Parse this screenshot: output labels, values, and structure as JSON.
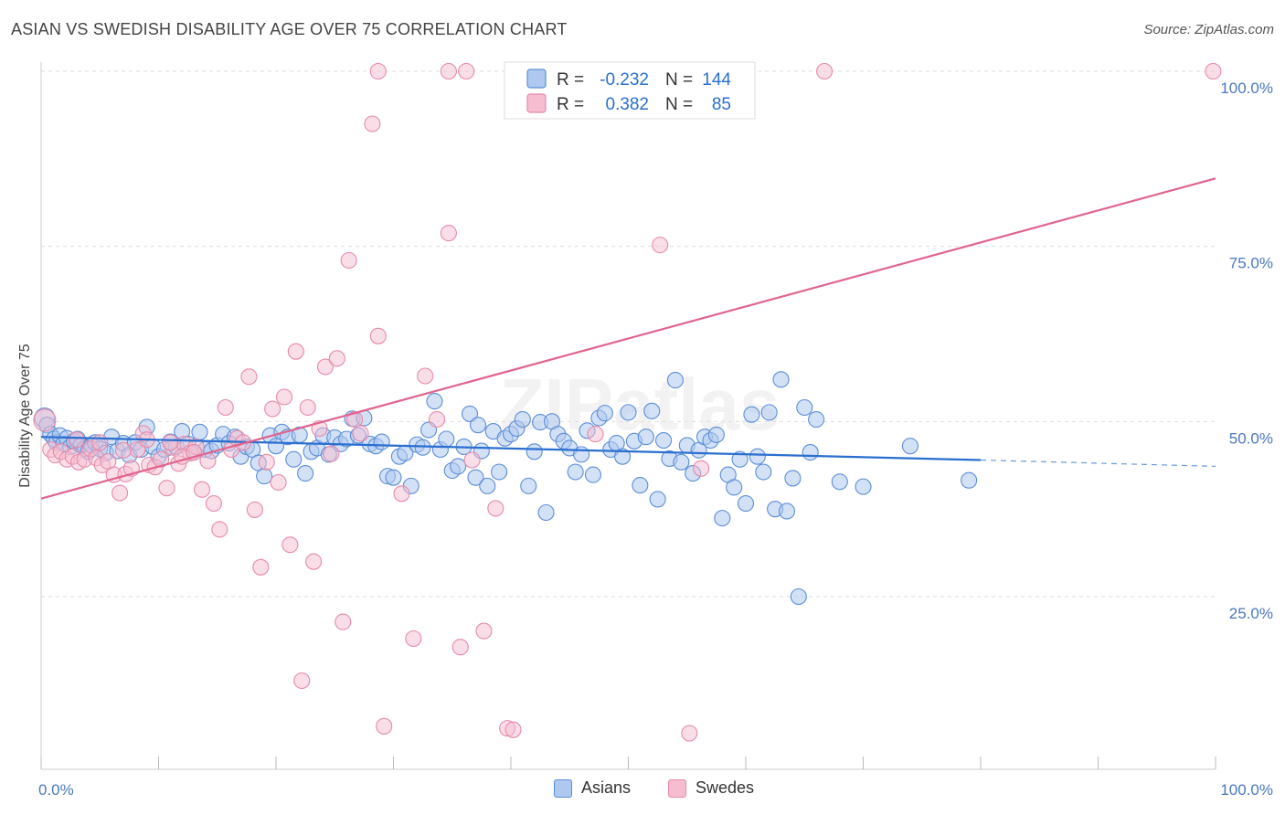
{
  "header": {
    "title": "ASIAN VS SWEDISH DISABILITY AGE OVER 75 CORRELATION CHART",
    "source": "Source: ZipAtlas.com"
  },
  "watermark": "ZIPatlas",
  "colors": {
    "asians_fill": "#aec8ef",
    "asians_stroke": "#5b8ed8",
    "asians_line": "#2a6fd0",
    "swedes_fill": "#f6bdd0",
    "swedes_stroke": "#e58aaa",
    "swedes_line": "#e0648e",
    "tick_text": "#4a78c0"
  },
  "legend": {
    "rows": [
      {
        "r_label": "R =",
        "r_value": "-0.232",
        "n_label": "N =",
        "n_value": "144"
      },
      {
        "r_label": "R =",
        "r_value": "0.382",
        "n_label": "N =",
        "n_value": "85"
      }
    ]
  },
  "bottom_legend": {
    "asians": "Asians",
    "swedes": "Swedes"
  },
  "chart_data": {
    "type": "scatter",
    "title": "ASIAN VS SWEDISH DISABILITY AGE OVER 75 CORRELATION CHART",
    "ylabel": "Disability Age Over 75",
    "xlabel": "",
    "x_tick_labels": [
      "0.0%",
      "100.0%"
    ],
    "y_tick_labels": [
      "100.0%",
      "75.0%",
      "50.0%",
      "25.0%"
    ],
    "y_ticks": [
      100,
      75,
      50,
      25
    ],
    "xlim": [
      0,
      100
    ],
    "ylim": [
      0,
      102
    ],
    "grid": "horizontal dashed",
    "legend_position": "top-center",
    "series": [
      {
        "name": "Asians",
        "r": -0.232,
        "n": 144,
        "trend": {
          "x0": 0,
          "y0": 47.8,
          "x1": 80,
          "y1": 44.5,
          "dashed_to_x": 100,
          "dashed_to_y": 43.6
        },
        "points": [
          [
            0.3,
            50.5
          ],
          [
            0.5,
            49.5
          ],
          [
            0.8,
            48.2
          ],
          [
            1.1,
            47.5
          ],
          [
            1.3,
            47.0
          ],
          [
            1.6,
            48.0
          ],
          [
            1.9,
            46.8
          ],
          [
            2.2,
            47.6
          ],
          [
            2.5,
            46.4
          ],
          [
            2.8,
            47.2
          ],
          [
            3.1,
            47.5
          ],
          [
            3.4,
            46.6
          ],
          [
            3.7,
            46.1
          ],
          [
            4.0,
            45.7
          ],
          [
            4.3,
            46.6
          ],
          [
            4.6,
            47.0
          ],
          [
            5.0,
            46.1
          ],
          [
            5.5,
            45.5
          ],
          [
            6.0,
            47.8
          ],
          [
            6.5,
            45.8
          ],
          [
            7.0,
            46.9
          ],
          [
            7.5,
            45.2
          ],
          [
            8.0,
            47.0
          ],
          [
            8.5,
            46.0
          ],
          [
            9.0,
            49.2
          ],
          [
            9.5,
            46.4
          ],
          [
            10.0,
            45.0
          ],
          [
            10.5,
            46.0
          ],
          [
            11.0,
            47.1
          ],
          [
            11.5,
            46.4
          ],
          [
            12.0,
            48.6
          ],
          [
            12.5,
            46.8
          ],
          [
            13.0,
            45.6
          ],
          [
            13.5,
            48.5
          ],
          [
            14.0,
            46.0
          ],
          [
            14.5,
            45.8
          ],
          [
            15.0,
            46.6
          ],
          [
            15.5,
            48.2
          ],
          [
            16.0,
            46.9
          ],
          [
            16.5,
            47.8
          ],
          [
            17.0,
            45.0
          ],
          [
            17.5,
            46.4
          ],
          [
            18.0,
            46.0
          ],
          [
            18.5,
            44.1
          ],
          [
            19.0,
            42.2
          ],
          [
            19.5,
            48.0
          ],
          [
            20.0,
            46.5
          ],
          [
            20.5,
            48.5
          ],
          [
            21.0,
            47.8
          ],
          [
            21.5,
            44.6
          ],
          [
            22.0,
            48.1
          ],
          [
            22.5,
            42.6
          ],
          [
            23.0,
            45.7
          ],
          [
            23.5,
            46.2
          ],
          [
            24.0,
            48.0
          ],
          [
            24.5,
            45.3
          ],
          [
            25.0,
            47.7
          ],
          [
            25.5,
            46.8
          ],
          [
            26.0,
            47.5
          ],
          [
            26.5,
            50.4
          ],
          [
            27.0,
            48.0
          ],
          [
            27.5,
            50.5
          ],
          [
            28.0,
            46.8
          ],
          [
            28.5,
            46.5
          ],
          [
            29.0,
            47.1
          ],
          [
            29.5,
            42.2
          ],
          [
            30.0,
            42.0
          ],
          [
            30.5,
            45.0
          ],
          [
            31.0,
            45.5
          ],
          [
            31.5,
            40.8
          ],
          [
            32.0,
            46.7
          ],
          [
            32.5,
            46.3
          ],
          [
            33.0,
            48.8
          ],
          [
            33.5,
            52.9
          ],
          [
            34.0,
            46.0
          ],
          [
            34.5,
            47.5
          ],
          [
            35.0,
            43.0
          ],
          [
            35.5,
            43.6
          ],
          [
            36.0,
            46.4
          ],
          [
            36.5,
            51.1
          ],
          [
            37.0,
            42.0
          ],
          [
            37.5,
            45.8
          ],
          [
            38.0,
            40.8
          ],
          [
            38.5,
            48.6
          ],
          [
            39.0,
            42.8
          ],
          [
            39.5,
            47.6
          ],
          [
            40.0,
            48.2
          ],
          [
            40.5,
            49.0
          ],
          [
            41.0,
            50.3
          ],
          [
            41.5,
            40.8
          ],
          [
            42.0,
            45.7
          ],
          [
            42.5,
            49.9
          ],
          [
            43.0,
            37.0
          ],
          [
            43.5,
            50.0
          ],
          [
            44.0,
            48.2
          ],
          [
            44.5,
            47.2
          ],
          [
            45.0,
            46.2
          ],
          [
            45.5,
            42.8
          ],
          [
            46.0,
            45.3
          ],
          [
            46.5,
            48.7
          ],
          [
            47.0,
            42.4
          ],
          [
            47.5,
            50.5
          ],
          [
            48.0,
            51.2
          ],
          [
            48.5,
            46.0
          ],
          [
            49.0,
            46.9
          ],
          [
            49.5,
            45.0
          ],
          [
            50.0,
            51.3
          ],
          [
            50.5,
            47.2
          ],
          [
            51.0,
            40.9
          ],
          [
            51.5,
            47.8
          ],
          [
            52.0,
            51.5
          ],
          [
            52.5,
            38.9
          ],
          [
            53.0,
            47.3
          ],
          [
            53.5,
            44.7
          ],
          [
            54.0,
            55.9
          ],
          [
            54.5,
            44.2
          ],
          [
            55.0,
            46.6
          ],
          [
            55.5,
            42.6
          ],
          [
            56.0,
            45.9
          ],
          [
            56.5,
            47.8
          ],
          [
            57.0,
            47.3
          ],
          [
            57.5,
            48.1
          ],
          [
            58.0,
            36.2
          ],
          [
            58.5,
            42.4
          ],
          [
            59.0,
            40.6
          ],
          [
            59.5,
            44.6
          ],
          [
            60.0,
            38.3
          ],
          [
            60.5,
            51.0
          ],
          [
            61.0,
            45.0
          ],
          [
            61.5,
            42.8
          ],
          [
            62.0,
            51.3
          ],
          [
            62.5,
            37.5
          ],
          [
            63.0,
            56.0
          ],
          [
            63.5,
            37.2
          ],
          [
            64.0,
            41.9
          ],
          [
            64.5,
            25.0
          ],
          [
            65.0,
            52.0
          ],
          [
            65.5,
            45.6
          ],
          [
            66.0,
            50.3
          ],
          [
            68.0,
            41.4
          ],
          [
            70.0,
            40.7
          ],
          [
            74.0,
            46.5
          ],
          [
            79.0,
            41.6
          ],
          [
            37.2,
            49.5
          ]
        ]
      },
      {
        "name": "Swedes",
        "r": 0.382,
        "n": 85,
        "trend": {
          "x0": 0,
          "y0": 39.0,
          "x1": 100,
          "y1": 84.7
        },
        "points": [
          [
            0.3,
            50.2
          ],
          [
            0.8,
            46.0
          ],
          [
            1.2,
            45.2
          ],
          [
            1.7,
            45.7
          ],
          [
            2.2,
            44.6
          ],
          [
            2.7,
            45.0
          ],
          [
            3.2,
            44.2
          ],
          [
            3.7,
            44.6
          ],
          [
            4.2,
            46.1
          ],
          [
            4.7,
            44.8
          ],
          [
            5.2,
            43.8
          ],
          [
            5.7,
            44.3
          ],
          [
            6.2,
            42.4
          ],
          [
            6.7,
            39.8
          ],
          [
            7.2,
            42.5
          ],
          [
            7.7,
            43.3
          ],
          [
            8.2,
            46.0
          ],
          [
            8.7,
            48.3
          ],
          [
            9.2,
            43.8
          ],
          [
            9.7,
            43.5
          ],
          [
            10.2,
            44.6
          ],
          [
            10.7,
            40.5
          ],
          [
            11.2,
            46.3
          ],
          [
            11.7,
            44.0
          ],
          [
            12.2,
            46.8
          ],
          [
            12.7,
            45.5
          ],
          [
            13.2,
            46.4
          ],
          [
            13.7,
            40.3
          ],
          [
            14.2,
            44.4
          ],
          [
            14.7,
            38.3
          ],
          [
            15.2,
            34.6
          ],
          [
            15.7,
            52.0
          ],
          [
            16.2,
            46.0
          ],
          [
            16.7,
            47.6
          ],
          [
            17.2,
            47.0
          ],
          [
            17.7,
            56.4
          ],
          [
            18.2,
            37.4
          ],
          [
            18.7,
            29.2
          ],
          [
            19.2,
            44.2
          ],
          [
            19.7,
            51.8
          ],
          [
            20.2,
            41.3
          ],
          [
            20.7,
            53.5
          ],
          [
            21.2,
            32.4
          ],
          [
            21.7,
            60.0
          ],
          [
            22.2,
            13.0
          ],
          [
            22.7,
            52.0
          ],
          [
            23.2,
            30.0
          ],
          [
            23.7,
            49.0
          ],
          [
            24.2,
            57.8
          ],
          [
            24.7,
            45.4
          ],
          [
            25.2,
            59.0
          ],
          [
            25.7,
            21.4
          ],
          [
            26.2,
            73.0
          ],
          [
            26.7,
            50.3
          ],
          [
            27.2,
            48.3
          ],
          [
            28.2,
            92.5
          ],
          [
            28.7,
            62.2
          ],
          [
            29.2,
            6.5
          ],
          [
            30.7,
            39.7
          ],
          [
            31.7,
            19.0
          ],
          [
            32.7,
            56.5
          ],
          [
            33.7,
            50.3
          ],
          [
            34.7,
            76.9
          ],
          [
            35.7,
            17.8
          ],
          [
            36.7,
            44.5
          ],
          [
            37.7,
            20.1
          ],
          [
            38.7,
            37.6
          ],
          [
            39.7,
            6.2
          ],
          [
            40.2,
            6.0
          ],
          [
            47.2,
            48.2
          ],
          [
            52.7,
            75.2
          ],
          [
            55.2,
            5.5
          ],
          [
            56.2,
            43.3
          ],
          [
            28.7,
            100.0
          ],
          [
            34.7,
            100.0
          ],
          [
            36.2,
            100.0
          ],
          [
            66.7,
            100.0
          ],
          [
            99.8,
            100.0
          ],
          [
            12.0,
            45.0
          ],
          [
            3.0,
            47.4
          ],
          [
            5.0,
            47.0
          ],
          [
            7.0,
            45.9
          ],
          [
            9.0,
            47.4
          ],
          [
            11.0,
            47.0
          ],
          [
            13.0,
            45.6
          ]
        ]
      }
    ]
  }
}
